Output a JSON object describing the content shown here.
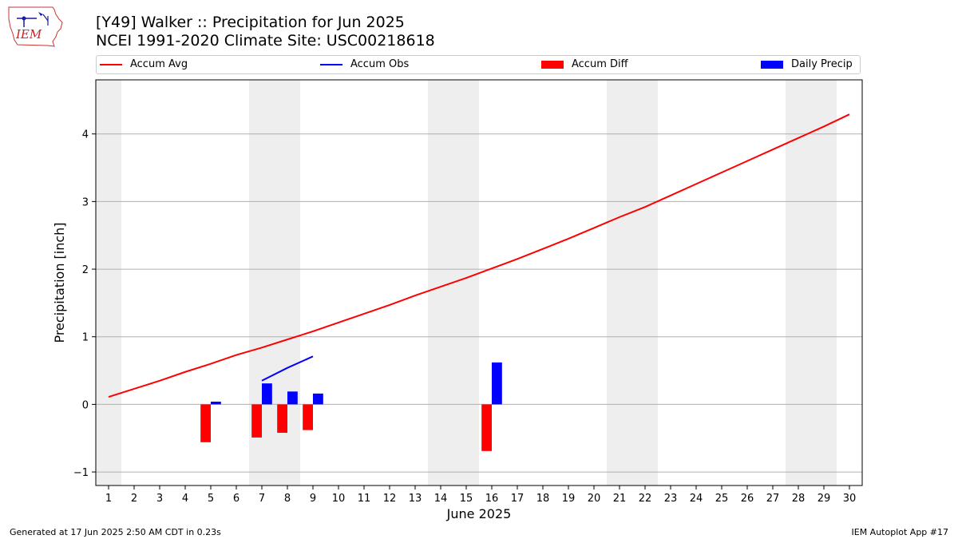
{
  "header": {
    "title_line1": "[Y49] Walker :: Precipitation for Jun 2025",
    "title_line2": "NCEI 1991-2020 Climate Site: USC00218618",
    "logo_text": "IEM"
  },
  "footer": {
    "left": "Generated at 17 Jun 2025 2:50 AM CDT in 0.23s",
    "right": "IEM Autoplot App #17"
  },
  "colors": {
    "accum_avg": "#ff0000",
    "accum_obs": "#0000ff",
    "accum_diff": "#ff0000",
    "daily_precip": "#0000ff",
    "weekend_band": "#eeeeee",
    "grid": "#b0b0b0"
  },
  "chart_data": {
    "type": "bar",
    "xlabel": "June 2025",
    "ylabel": "Precipitation [inch]",
    "x": [
      1,
      2,
      3,
      4,
      5,
      6,
      7,
      8,
      9,
      10,
      11,
      12,
      13,
      14,
      15,
      16,
      17,
      18,
      19,
      20,
      21,
      22,
      23,
      24,
      25,
      26,
      27,
      28,
      29,
      30
    ],
    "xlim": [
      0.5,
      30.5
    ],
    "ylim": [
      -1.2,
      4.8
    ],
    "yticks": [
      -1,
      0,
      1,
      2,
      3,
      4
    ],
    "grid": "horizontal",
    "weekend_days": [
      1,
      7,
      8,
      14,
      15,
      21,
      22,
      28,
      29
    ],
    "legend": [
      "Accum Avg",
      "Accum Obs",
      "Accum Diff",
      "Daily Precip"
    ],
    "legend_position": "top",
    "series": [
      {
        "name": "Accum Avg",
        "kind": "line",
        "x": [
          1,
          2,
          3,
          4,
          5,
          6,
          7,
          8,
          9,
          10,
          11,
          12,
          13,
          14,
          15,
          16,
          17,
          18,
          19,
          20,
          21,
          22,
          23,
          24,
          25,
          26,
          27,
          28,
          29,
          30
        ],
        "values": [
          0.11,
          0.23,
          0.35,
          0.48,
          0.6,
          0.73,
          0.84,
          0.96,
          1.08,
          1.21,
          1.34,
          1.47,
          1.61,
          1.74,
          1.87,
          2.01,
          2.15,
          2.3,
          2.45,
          2.61,
          2.77,
          2.92,
          3.09,
          3.26,
          3.43,
          3.6,
          3.77,
          3.94,
          4.11,
          4.29
        ]
      },
      {
        "name": "Accum Obs",
        "kind": "line",
        "x": [
          7,
          8,
          9
        ],
        "values": [
          0.35,
          0.54,
          0.71
        ]
      },
      {
        "name": "Accum Diff",
        "kind": "bar",
        "x": [
          5,
          7,
          8,
          9,
          16
        ],
        "values": [
          -0.56,
          -0.49,
          -0.42,
          -0.38,
          -0.69
        ]
      },
      {
        "name": "Daily Precip",
        "kind": "bar",
        "x": [
          5,
          7,
          8,
          9,
          16
        ],
        "values": [
          0.04,
          0.31,
          0.19,
          0.16,
          0.62
        ]
      }
    ]
  }
}
